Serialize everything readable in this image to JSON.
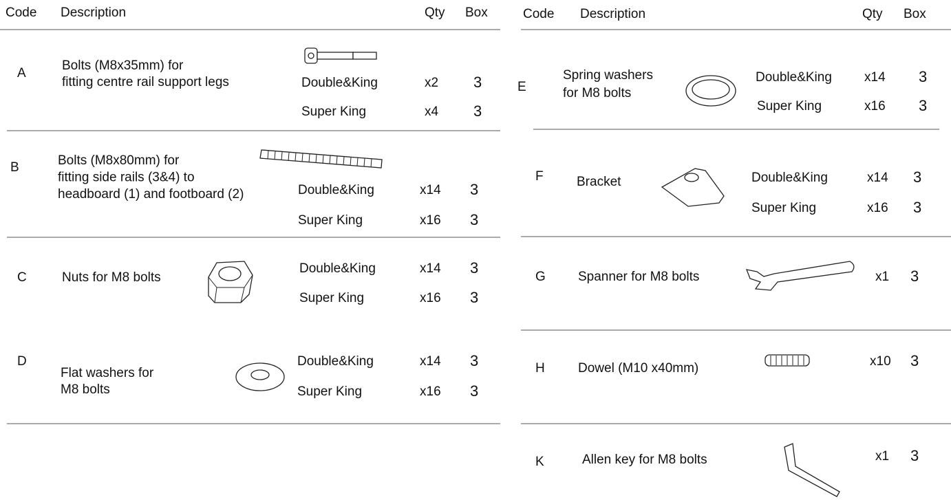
{
  "left": {
    "header": [
      "Code",
      "Description",
      "Qty",
      "Box"
    ],
    "rows": [
      {
        "code": "A",
        "description": [
          "Bolts (M8x35mm) for",
          "fitting centre rail support legs"
        ],
        "variants": [
          {
            "name": "Double&King",
            "qty": "x2",
            "box": "3"
          },
          {
            "name": "Super King",
            "qty": "x4",
            "box": "3"
          }
        ]
      },
      {
        "code": "B",
        "description": [
          "Bolts (M8x80mm) for",
          "fitting side rails (3&4) to",
          "headboard (1) and footboard (2)"
        ],
        "variants": [
          {
            "name": "Double&King",
            "qty": "x14",
            "box": "3"
          },
          {
            "name": "Super King",
            "qty": "x16",
            "box": "3"
          }
        ]
      },
      {
        "code": "C",
        "description": [
          "Nuts for M8 bolts"
        ],
        "variants": [
          {
            "name": "Double&King",
            "qty": "x14",
            "box": "3"
          },
          {
            "name": "Super King",
            "qty": "x16",
            "box": "3"
          }
        ]
      },
      {
        "code": "D",
        "description": [
          "Flat washers for",
          "M8 bolts"
        ],
        "variants": [
          {
            "name": "Double&King",
            "qty": "x14",
            "box": "3"
          },
          {
            "name": "Super King",
            "qty": "x16",
            "box": "3"
          }
        ]
      }
    ]
  },
  "right": {
    "header": [
      "Code",
      "Description",
      "Qty",
      "Box"
    ],
    "rows": [
      {
        "code": "E",
        "description": [
          "Spring washers",
          "for M8 bolts"
        ],
        "variants": [
          {
            "name": "Double&King",
            "qty": "x14",
            "box": "3"
          },
          {
            "name": "Super King",
            "qty": "x16",
            "box": "3"
          }
        ]
      },
      {
        "code": "F",
        "description": [
          "Bracket"
        ],
        "variants": [
          {
            "name": "Double&King",
            "qty": "x14",
            "box": "3"
          },
          {
            "name": "Super King",
            "qty": "x16",
            "box": "3"
          }
        ]
      },
      {
        "code": "G",
        "description": [
          "Spanner for M8 bolts"
        ],
        "variants": [
          {
            "qty": "x1",
            "box": "3"
          }
        ]
      },
      {
        "code": "H",
        "description": [
          "Dowel (M10 x40mm)"
        ],
        "variants": [
          {
            "qty": "x10",
            "box": "3"
          }
        ]
      },
      {
        "code": "K",
        "description": [
          "Allen key for M8 bolts"
        ],
        "variants": [
          {
            "qty": "x1",
            "box": "3"
          }
        ]
      }
    ]
  }
}
